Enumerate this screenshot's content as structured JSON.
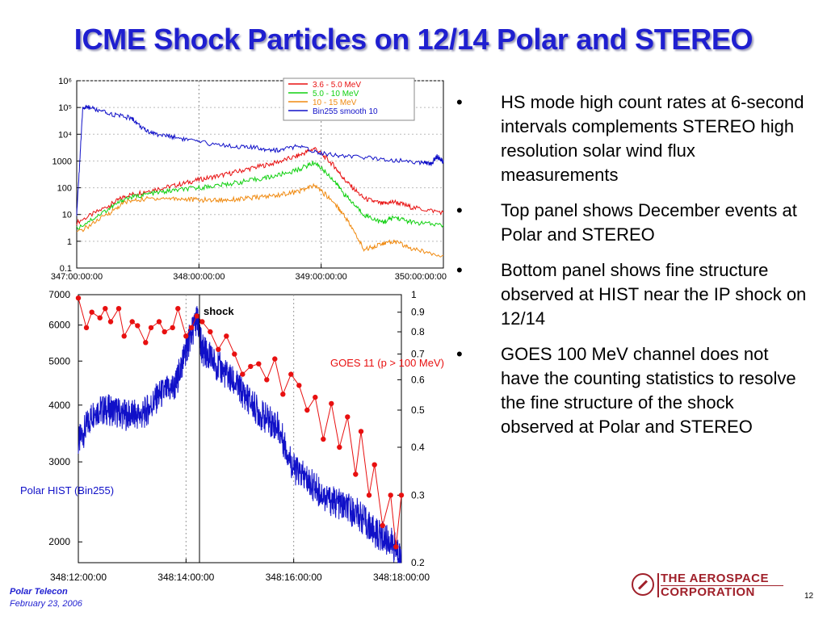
{
  "slide": {
    "title": "ICME Shock Particles on 12/14  Polar and STEREO",
    "bullets": [
      "HS mode high count rates at 6-second intervals complements STEREO high resolution solar wind flux measurements",
      "Top panel shows December events at Polar and STEREO",
      "Bottom panel shows fine structure observed at HIST near the IP shock on 12/14",
      "GOES 100 MeV channel does not have the counting statistics to resolve the fine structure of the shock observed at Polar and STEREO"
    ],
    "bullet_char": "•",
    "footer": {
      "org": "Polar Telecon",
      "date": "February 23, 2006"
    },
    "logo": {
      "line1": "THE AEROSPACE",
      "line2": "CORPORATION"
    },
    "page_number": "12"
  },
  "colors": {
    "title": "#1f1fd0",
    "logo": "#a0202a",
    "red": "#e81010",
    "green": "#10d010",
    "orange": "#f08a10",
    "blue": "#1010c8"
  },
  "chart_data": [
    {
      "type": "line",
      "x": [
        "347:00:00:00",
        "348:00:00:00",
        "349:00:00:00",
        "350:00:00:00"
      ],
      "ylabel": "",
      "xlabel": "",
      "scale": "log",
      "yticks": [
        "10⁶",
        "10⁵",
        "10⁴",
        "1000",
        "100",
        "10",
        "1",
        "0.1"
      ],
      "xticks": [
        "347:00:00:00",
        "348:00:00:00",
        "349:00:00:00",
        "350:00:00:00"
      ],
      "xlim": [
        347.0,
        350.0
      ],
      "ylim": [
        0.1,
        1000000
      ],
      "legend_position": "top-right",
      "series": [
        {
          "name": "3.6 - 5.0 MeV",
          "color": "red",
          "x": [
            347.0,
            347.25,
            347.4,
            347.6,
            347.8,
            348.0,
            348.2,
            348.4,
            348.6,
            348.8,
            348.95,
            349.1,
            349.2,
            349.35,
            349.5,
            349.6,
            349.75,
            350.0
          ],
          "values": [
            5,
            20,
            50,
            80,
            120,
            200,
            300,
            500,
            800,
            1500,
            3000,
            700,
            180,
            40,
            25,
            30,
            18,
            12
          ]
        },
        {
          "name": "5.0 - 10 MeV",
          "color": "green",
          "x": [
            347.0,
            347.25,
            347.4,
            347.6,
            347.8,
            348.0,
            348.2,
            348.4,
            348.6,
            348.8,
            348.95,
            349.1,
            349.2,
            349.35,
            349.5,
            349.6,
            349.75,
            350.0
          ],
          "values": [
            3,
            15,
            40,
            60,
            80,
            100,
            130,
            180,
            260,
            450,
            900,
            200,
            50,
            10,
            5,
            8,
            5,
            4
          ]
        },
        {
          "name": "10 - 15 MeV",
          "color": "orange",
          "x": [
            347.0,
            347.25,
            347.4,
            347.6,
            347.8,
            348.0,
            348.2,
            348.4,
            348.6,
            348.8,
            348.95,
            349.1,
            349.2,
            349.35,
            349.5,
            349.6,
            349.75,
            350.0
          ],
          "values": [
            2,
            10,
            30,
            40,
            40,
            35,
            35,
            40,
            50,
            70,
            120,
            30,
            8,
            0.5,
            0.8,
            1,
            0.5,
            0.3
          ]
        },
        {
          "name": "Bin255 smooth 10",
          "color": "blue",
          "x": [
            347.0,
            347.05,
            347.1,
            347.25,
            347.45,
            347.55,
            347.65,
            347.8,
            348.0,
            348.3,
            348.5,
            348.65,
            348.8,
            349.0,
            349.2,
            349.5,
            349.8,
            349.9,
            349.95,
            350.0
          ],
          "values": [
            10,
            100000,
            100000,
            60000,
            40000,
            15000,
            10000,
            8000,
            5000,
            3500,
            3000,
            2500,
            3500,
            2000,
            1500,
            1200,
            900,
            800,
            1500,
            900
          ]
        }
      ]
    },
    {
      "type": "line",
      "x": [
        "348:12:00:00",
        "348:14:00:00",
        "348:16:00:00",
        "348:18:00:00"
      ],
      "xticks": [
        "348:12:00:00",
        "348:14:00:00",
        "348:16:00:00",
        "348:18:00:00"
      ],
      "xlim": [
        12.0,
        18.0
      ],
      "y_left_ticks": [
        "7000",
        "6000",
        "5000",
        "4000",
        "3000",
        "2000"
      ],
      "y_right_ticks": [
        "1",
        "0.9",
        "0.8",
        "0.7",
        "0.6",
        "0.5",
        "0.4",
        "0.3",
        "0.2"
      ],
      "annotations": [
        "shock"
      ],
      "shock_x": 14.25,
      "series": [
        {
          "name": "Polar HIST (Bin255)",
          "color": "blue",
          "axis": "left",
          "x": [
            12.0,
            12.3,
            12.6,
            12.9,
            13.2,
            13.5,
            13.8,
            14.0,
            14.2,
            14.3,
            14.5,
            14.8,
            15.1,
            15.4,
            15.7,
            16.0,
            16.3,
            16.6,
            16.9,
            17.2,
            17.5,
            17.8,
            18.0
          ],
          "values": [
            3300,
            3900,
            3900,
            3800,
            3800,
            4200,
            4400,
            5300,
            6200,
            5300,
            5000,
            4600,
            4200,
            3800,
            3600,
            2900,
            2700,
            2500,
            2400,
            2300,
            2100,
            2000,
            1850
          ]
        },
        {
          "name": "GOES 11 (p > 100 MeV)",
          "color": "red",
          "axis": "right",
          "x": [
            12.0,
            12.15,
            12.25,
            12.4,
            12.5,
            12.6,
            12.75,
            12.85,
            13.0,
            13.1,
            13.25,
            13.35,
            13.5,
            13.6,
            13.75,
            13.85,
            14.0,
            14.1,
            14.2,
            14.3,
            14.45,
            14.6,
            14.75,
            14.9,
            15.05,
            15.2,
            15.35,
            15.5,
            15.65,
            15.8,
            15.95,
            16.1,
            16.25,
            16.4,
            16.55,
            16.7,
            16.85,
            17.0,
            17.15,
            17.25,
            17.4,
            17.5,
            17.65,
            17.8,
            17.9,
            18.0
          ],
          "values": [
            0.98,
            0.82,
            0.9,
            0.87,
            0.92,
            0.85,
            0.92,
            0.78,
            0.85,
            0.83,
            0.75,
            0.82,
            0.85,
            0.8,
            0.82,
            0.92,
            0.78,
            0.82,
            0.88,
            0.85,
            0.8,
            0.72,
            0.78,
            0.7,
            0.62,
            0.65,
            0.66,
            0.6,
            0.68,
            0.55,
            0.62,
            0.58,
            0.5,
            0.54,
            0.42,
            0.52,
            0.4,
            0.48,
            0.34,
            0.44,
            0.3,
            0.36,
            0.25,
            0.3,
            0.22,
            0.3
          ]
        }
      ]
    }
  ]
}
